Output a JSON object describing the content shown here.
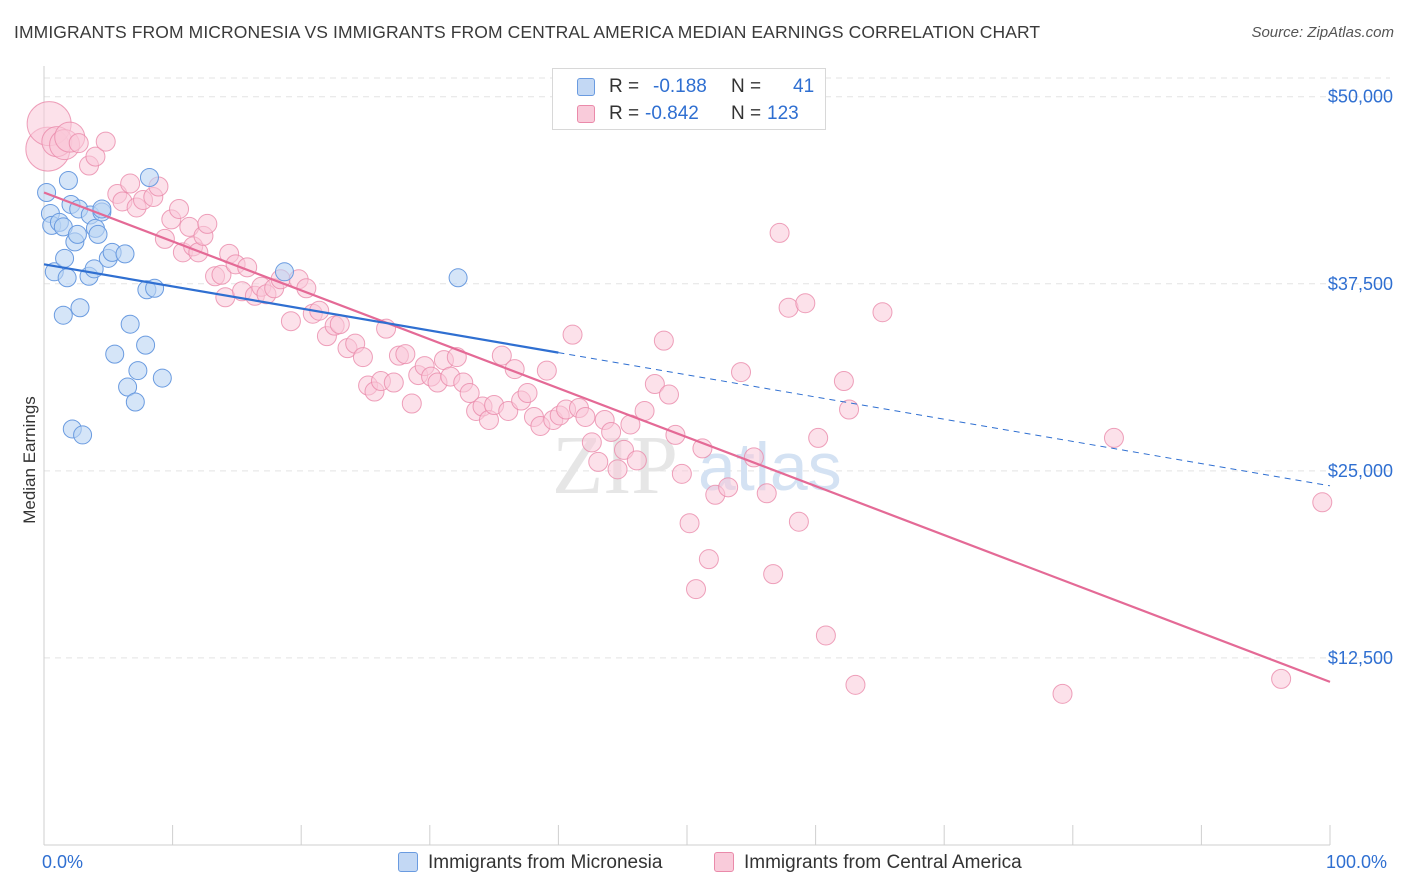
{
  "header": {
    "title": "IMMIGRANTS FROM MICRONESIA VS IMMIGRANTS FROM CENTRAL AMERICA MEDIAN EARNINGS CORRELATION CHART",
    "source": "Source: ZipAtlas.com"
  },
  "legend_top": {
    "rows": [
      {
        "r_label": "R =",
        "r_value": "-0.188",
        "n_label": "N =",
        "n_value": "41",
        "color": "#a9c8f0"
      },
      {
        "r_label": "R =",
        "r_value": "-0.842",
        "n_label": "N =",
        "n_value": "123",
        "color": "#f5b7ca"
      }
    ]
  },
  "legend_bottom": [
    "Immigrants from Micronesia",
    "Immigrants from Central America"
  ],
  "watermark": {
    "zip": "ZIP",
    "atlas": "atlas"
  },
  "colors": {
    "blue_fill": "#b9d3f3",
    "blue_stroke": "#6a9be0",
    "blue_line": "#2f6fd1",
    "pink_fill": "#f9c9d8",
    "pink_stroke": "#ea8aaa",
    "pink_line": "#e46a96",
    "axis_label": "#2f6fd1",
    "grid": "#e3e3e3"
  },
  "chart_data": {
    "type": "scatter",
    "title": "IMMIGRANTS FROM MICRONESIA VS IMMIGRANTS FROM CENTRAL AMERICA MEDIAN EARNINGS CORRELATION CHART",
    "xlabel": "",
    "ylabel": "Median Earnings",
    "x_tick_labels": [
      "0.0%",
      "100.0%"
    ],
    "y_tick_labels": [
      "$12,500",
      "$25,000",
      "$37,500",
      "$50,000"
    ],
    "y_ticks": [
      12500,
      25000,
      37500,
      50000
    ],
    "xlim": [
      0,
      100
    ],
    "ylim": [
      0,
      51250
    ],
    "grid": true,
    "legend_position": "top-center",
    "series": [
      {
        "name": "Immigrants from Micronesia",
        "r": -0.188,
        "n": 41,
        "trend": {
          "x": [
            0,
            40
          ],
          "y": [
            38800,
            32900
          ]
        },
        "trend_extension": {
          "x": [
            40,
            100
          ],
          "y": [
            32900,
            24000
          ]
        },
        "points": [
          {
            "x": 0.2,
            "y": 43600
          },
          {
            "x": 0.5,
            "y": 42200
          },
          {
            "x": 0.6,
            "y": 41400
          },
          {
            "x": 0.8,
            "y": 38300
          },
          {
            "x": 1.2,
            "y": 41600
          },
          {
            "x": 1.5,
            "y": 41300
          },
          {
            "x": 1.5,
            "y": 35400
          },
          {
            "x": 1.6,
            "y": 39200
          },
          {
            "x": 1.8,
            "y": 37900
          },
          {
            "x": 1.9,
            "y": 44400
          },
          {
            "x": 2.1,
            "y": 42800
          },
          {
            "x": 2.2,
            "y": 27800
          },
          {
            "x": 2.4,
            "y": 40300
          },
          {
            "x": 2.6,
            "y": 40800
          },
          {
            "x": 2.7,
            "y": 42500
          },
          {
            "x": 2.8,
            "y": 35900
          },
          {
            "x": 3.0,
            "y": 27400
          },
          {
            "x": 3.5,
            "y": 38000
          },
          {
            "x": 3.6,
            "y": 42100
          },
          {
            "x": 3.9,
            "y": 38500
          },
          {
            "x": 4.0,
            "y": 41200
          },
          {
            "x": 4.2,
            "y": 40800
          },
          {
            "x": 4.5,
            "y": 42300
          },
          {
            "x": 4.5,
            "y": 42500
          },
          {
            "x": 5.0,
            "y": 39200
          },
          {
            "x": 5.3,
            "y": 39600
          },
          {
            "x": 5.5,
            "y": 32800
          },
          {
            "x": 6.3,
            "y": 39500
          },
          {
            "x": 6.5,
            "y": 30600
          },
          {
            "x": 6.7,
            "y": 34800
          },
          {
            "x": 7.1,
            "y": 29600
          },
          {
            "x": 7.3,
            "y": 31700
          },
          {
            "x": 7.9,
            "y": 33400
          },
          {
            "x": 8.0,
            "y": 37100
          },
          {
            "x": 8.2,
            "y": 44600
          },
          {
            "x": 8.6,
            "y": 37200
          },
          {
            "x": 9.2,
            "y": 31200
          },
          {
            "x": 18.7,
            "y": 38300
          },
          {
            "x": 32.2,
            "y": 37900
          }
        ]
      },
      {
        "name": "Immigrants from Central America",
        "r": -0.842,
        "n": 123,
        "trend": {
          "x": [
            0,
            100
          ],
          "y": [
            43600,
            10900
          ]
        },
        "points": [
          {
            "x": 0.3,
            "y": 46500,
            "s": 3
          },
          {
            "x": 0.4,
            "y": 48200,
            "s": 3
          },
          {
            "x": 1.0,
            "y": 47000,
            "s": 2
          },
          {
            "x": 1.6,
            "y": 46800,
            "s": 2
          },
          {
            "x": 2.0,
            "y": 47300,
            "s": 2
          },
          {
            "x": 2.7,
            "y": 46900
          },
          {
            "x": 3.5,
            "y": 45400
          },
          {
            "x": 4.0,
            "y": 46000
          },
          {
            "x": 4.8,
            "y": 47000
          },
          {
            "x": 5.7,
            "y": 43500
          },
          {
            "x": 6.1,
            "y": 43000
          },
          {
            "x": 6.7,
            "y": 44200
          },
          {
            "x": 7.2,
            "y": 42600
          },
          {
            "x": 7.7,
            "y": 43100
          },
          {
            "x": 8.5,
            "y": 43300
          },
          {
            "x": 8.9,
            "y": 44000
          },
          {
            "x": 9.4,
            "y": 40500
          },
          {
            "x": 9.9,
            "y": 41800
          },
          {
            "x": 10.5,
            "y": 42500
          },
          {
            "x": 10.8,
            "y": 39600
          },
          {
            "x": 11.3,
            "y": 41300
          },
          {
            "x": 11.6,
            "y": 40000
          },
          {
            "x": 12.0,
            "y": 39600
          },
          {
            "x": 12.4,
            "y": 40700
          },
          {
            "x": 12.7,
            "y": 41500
          },
          {
            "x": 13.3,
            "y": 38000
          },
          {
            "x": 13.8,
            "y": 38100
          },
          {
            "x": 14.1,
            "y": 36600
          },
          {
            "x": 14.4,
            "y": 39500
          },
          {
            "x": 14.9,
            "y": 38800
          },
          {
            "x": 15.4,
            "y": 37000
          },
          {
            "x": 15.8,
            "y": 38600
          },
          {
            "x": 16.4,
            "y": 36700
          },
          {
            "x": 16.9,
            "y": 37300
          },
          {
            "x": 17.3,
            "y": 36800
          },
          {
            "x": 17.9,
            "y": 37200
          },
          {
            "x": 18.4,
            "y": 37800
          },
          {
            "x": 19.2,
            "y": 35000
          },
          {
            "x": 19.8,
            "y": 37800
          },
          {
            "x": 20.4,
            "y": 37200
          },
          {
            "x": 20.9,
            "y": 35500
          },
          {
            "x": 21.4,
            "y": 35700
          },
          {
            "x": 22.0,
            "y": 34000
          },
          {
            "x": 22.6,
            "y": 34700
          },
          {
            "x": 23.0,
            "y": 34800
          },
          {
            "x": 23.6,
            "y": 33200
          },
          {
            "x": 24.2,
            "y": 33500
          },
          {
            "x": 24.8,
            "y": 32600
          },
          {
            "x": 25.2,
            "y": 30700
          },
          {
            "x": 25.7,
            "y": 30300
          },
          {
            "x": 26.2,
            "y": 31000
          },
          {
            "x": 26.6,
            "y": 34500
          },
          {
            "x": 27.2,
            "y": 30900
          },
          {
            "x": 27.6,
            "y": 32700
          },
          {
            "x": 28.1,
            "y": 32800
          },
          {
            "x": 28.6,
            "y": 29500
          },
          {
            "x": 29.1,
            "y": 31400
          },
          {
            "x": 29.6,
            "y": 32000
          },
          {
            "x": 30.1,
            "y": 31300
          },
          {
            "x": 30.6,
            "y": 30900
          },
          {
            "x": 31.1,
            "y": 32400
          },
          {
            "x": 31.6,
            "y": 31300
          },
          {
            "x": 32.1,
            "y": 32600
          },
          {
            "x": 32.6,
            "y": 30900
          },
          {
            "x": 33.1,
            "y": 30200
          },
          {
            "x": 33.6,
            "y": 29000
          },
          {
            "x": 34.1,
            "y": 29300
          },
          {
            "x": 34.6,
            "y": 28400
          },
          {
            "x": 35.0,
            "y": 29400
          },
          {
            "x": 35.6,
            "y": 32700
          },
          {
            "x": 36.1,
            "y": 29000
          },
          {
            "x": 36.6,
            "y": 31800
          },
          {
            "x": 37.1,
            "y": 29700
          },
          {
            "x": 37.6,
            "y": 30200
          },
          {
            "x": 38.1,
            "y": 28600
          },
          {
            "x": 38.6,
            "y": 28000
          },
          {
            "x": 39.1,
            "y": 31700
          },
          {
            "x": 39.6,
            "y": 28400
          },
          {
            "x": 40.1,
            "y": 28700
          },
          {
            "x": 40.6,
            "y": 29100
          },
          {
            "x": 41.1,
            "y": 34100
          },
          {
            "x": 41.6,
            "y": 29200
          },
          {
            "x": 42.1,
            "y": 28600
          },
          {
            "x": 42.6,
            "y": 26900
          },
          {
            "x": 43.1,
            "y": 25600
          },
          {
            "x": 43.6,
            "y": 28400
          },
          {
            "x": 44.1,
            "y": 27600
          },
          {
            "x": 44.6,
            "y": 25100
          },
          {
            "x": 45.1,
            "y": 26400
          },
          {
            "x": 45.6,
            "y": 28100
          },
          {
            "x": 46.1,
            "y": 25700
          },
          {
            "x": 46.7,
            "y": 29000
          },
          {
            "x": 47.5,
            "y": 30800
          },
          {
            "x": 48.2,
            "y": 33700
          },
          {
            "x": 48.6,
            "y": 30100
          },
          {
            "x": 49.1,
            "y": 27400
          },
          {
            "x": 49.6,
            "y": 24800
          },
          {
            "x": 50.2,
            "y": 21500
          },
          {
            "x": 50.7,
            "y": 17100
          },
          {
            "x": 51.2,
            "y": 26500
          },
          {
            "x": 51.7,
            "y": 19100
          },
          {
            "x": 52.2,
            "y": 23400
          },
          {
            "x": 53.2,
            "y": 23900
          },
          {
            "x": 54.2,
            "y": 31600
          },
          {
            "x": 55.2,
            "y": 25900
          },
          {
            "x": 56.2,
            "y": 23500
          },
          {
            "x": 56.7,
            "y": 18100
          },
          {
            "x": 57.2,
            "y": 40900
          },
          {
            "x": 57.9,
            "y": 35900
          },
          {
            "x": 58.7,
            "y": 21600
          },
          {
            "x": 59.2,
            "y": 36200
          },
          {
            "x": 60.2,
            "y": 27200
          },
          {
            "x": 60.8,
            "y": 14000
          },
          {
            "x": 62.2,
            "y": 31000
          },
          {
            "x": 62.6,
            "y": 29100
          },
          {
            "x": 63.1,
            "y": 10700
          },
          {
            "x": 65.2,
            "y": 35600
          },
          {
            "x": 79.2,
            "y": 10100
          },
          {
            "x": 83.2,
            "y": 27200
          },
          {
            "x": 96.2,
            "y": 11100
          },
          {
            "x": 99.4,
            "y": 22900
          }
        ]
      }
    ]
  }
}
